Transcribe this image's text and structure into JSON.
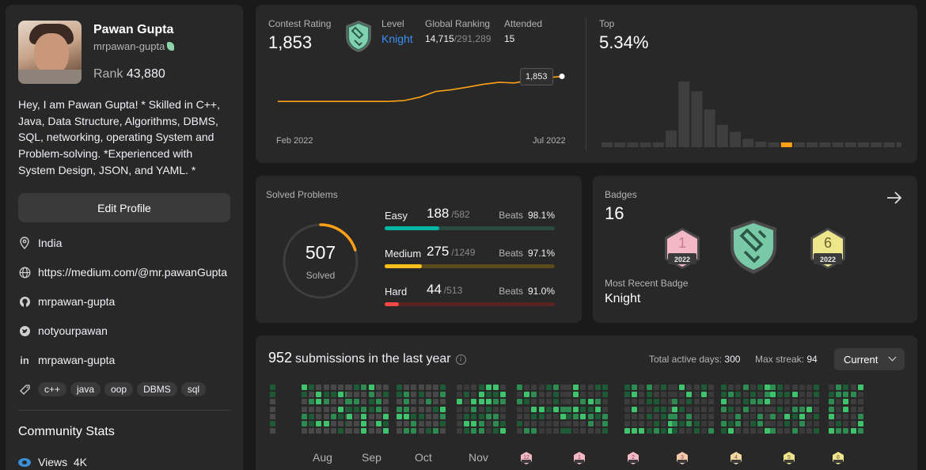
{
  "profile": {
    "name": "Pawan Gupta",
    "username": "mrpawan-gupta",
    "rank_label": "Rank",
    "rank_value": "43,880",
    "bio": "Hey, I am Pawan Gupta! * Skilled in C++, Java, Data Structure, Algorithms, DBMS, SQL, networking, operating System and Problem-solving. *Experienced with System Design, JSON, and YAML. *",
    "edit_label": "Edit Profile",
    "location": "India",
    "website": "https://medium.com/@mr.pawanGupta",
    "github": "mrpawan-gupta",
    "twitter": "notyourpawan",
    "linkedin": "mrpawan-gupta",
    "skills": [
      "c++",
      "java",
      "oop",
      "DBMS",
      "sql"
    ],
    "community_title": "Community Stats",
    "views_label": "Views",
    "views_value": "4K"
  },
  "contest": {
    "rating_label": "Contest Rating",
    "rating": "1,853",
    "level_label": "Level",
    "level": "Knight",
    "global_label": "Global Ranking",
    "global_rank": "14,715",
    "global_total": "/291,289",
    "attended_label": "Attended",
    "attended": "15",
    "top_label": "Top",
    "top_value": "5.34%",
    "tooltip": "1,853",
    "axis_start": "Feb 2022",
    "axis_end": "Jul 2022",
    "rating_history": [
      1765,
      1765,
      1765,
      1765,
      1765,
      1765,
      1765,
      1765,
      1768,
      1780,
      1800,
      1806,
      1815,
      1825,
      1832,
      1830,
      1840,
      1848,
      1853
    ],
    "distribution": [
      1,
      1,
      1,
      1,
      3,
      12,
      47,
      40,
      27,
      16,
      11,
      6,
      4,
      2,
      2,
      2,
      2,
      2,
      2,
      2,
      2,
      2,
      2,
      2
    ],
    "highlight_index": 14,
    "line_color": "#ffa116",
    "bar_color": "#3e3e3e",
    "highlight_color": "#ffa116"
  },
  "solved": {
    "title": "Solved Problems",
    "total": "507",
    "total_label": "Solved",
    "ring_fraction": 0.2,
    "items": [
      {
        "name": "Easy",
        "count": "188",
        "total": "/582",
        "beats_label": "Beats",
        "beats": "98.1%",
        "fraction": 0.323,
        "color": "#00b8a3",
        "track": "#2a4a3f"
      },
      {
        "name": "Medium",
        "count": "275",
        "total": "/1249",
        "beats_label": "Beats",
        "beats": "97.1%",
        "fraction": 0.22,
        "color": "#ffc01e",
        "track": "#5a4a1c"
      },
      {
        "name": "Hard",
        "count": "44",
        "total": "/513",
        "beats_label": "Beats",
        "beats": "91.0%",
        "fraction": 0.086,
        "color": "#ef4743",
        "track": "#5a2423"
      }
    ]
  },
  "badges": {
    "title": "Badges",
    "count": "16",
    "recent_label": "Most Recent Badge",
    "recent": "Knight",
    "badge1_num": "1",
    "badge1_year": "2022",
    "badge2_num": "6",
    "badge2_year": "2022"
  },
  "submissions": {
    "count": "952",
    "label": "submissions in the last year",
    "active_label": "Total active days:",
    "active_value": "300",
    "streak_label": "Max streak:",
    "streak_value": "94",
    "select_value": "Current",
    "months": [
      "Aug",
      "Sep",
      "Oct",
      "Nov"
    ],
    "month_badges": [
      "12",
      "1",
      "2",
      "3",
      "4",
      "5",
      "6"
    ]
  }
}
